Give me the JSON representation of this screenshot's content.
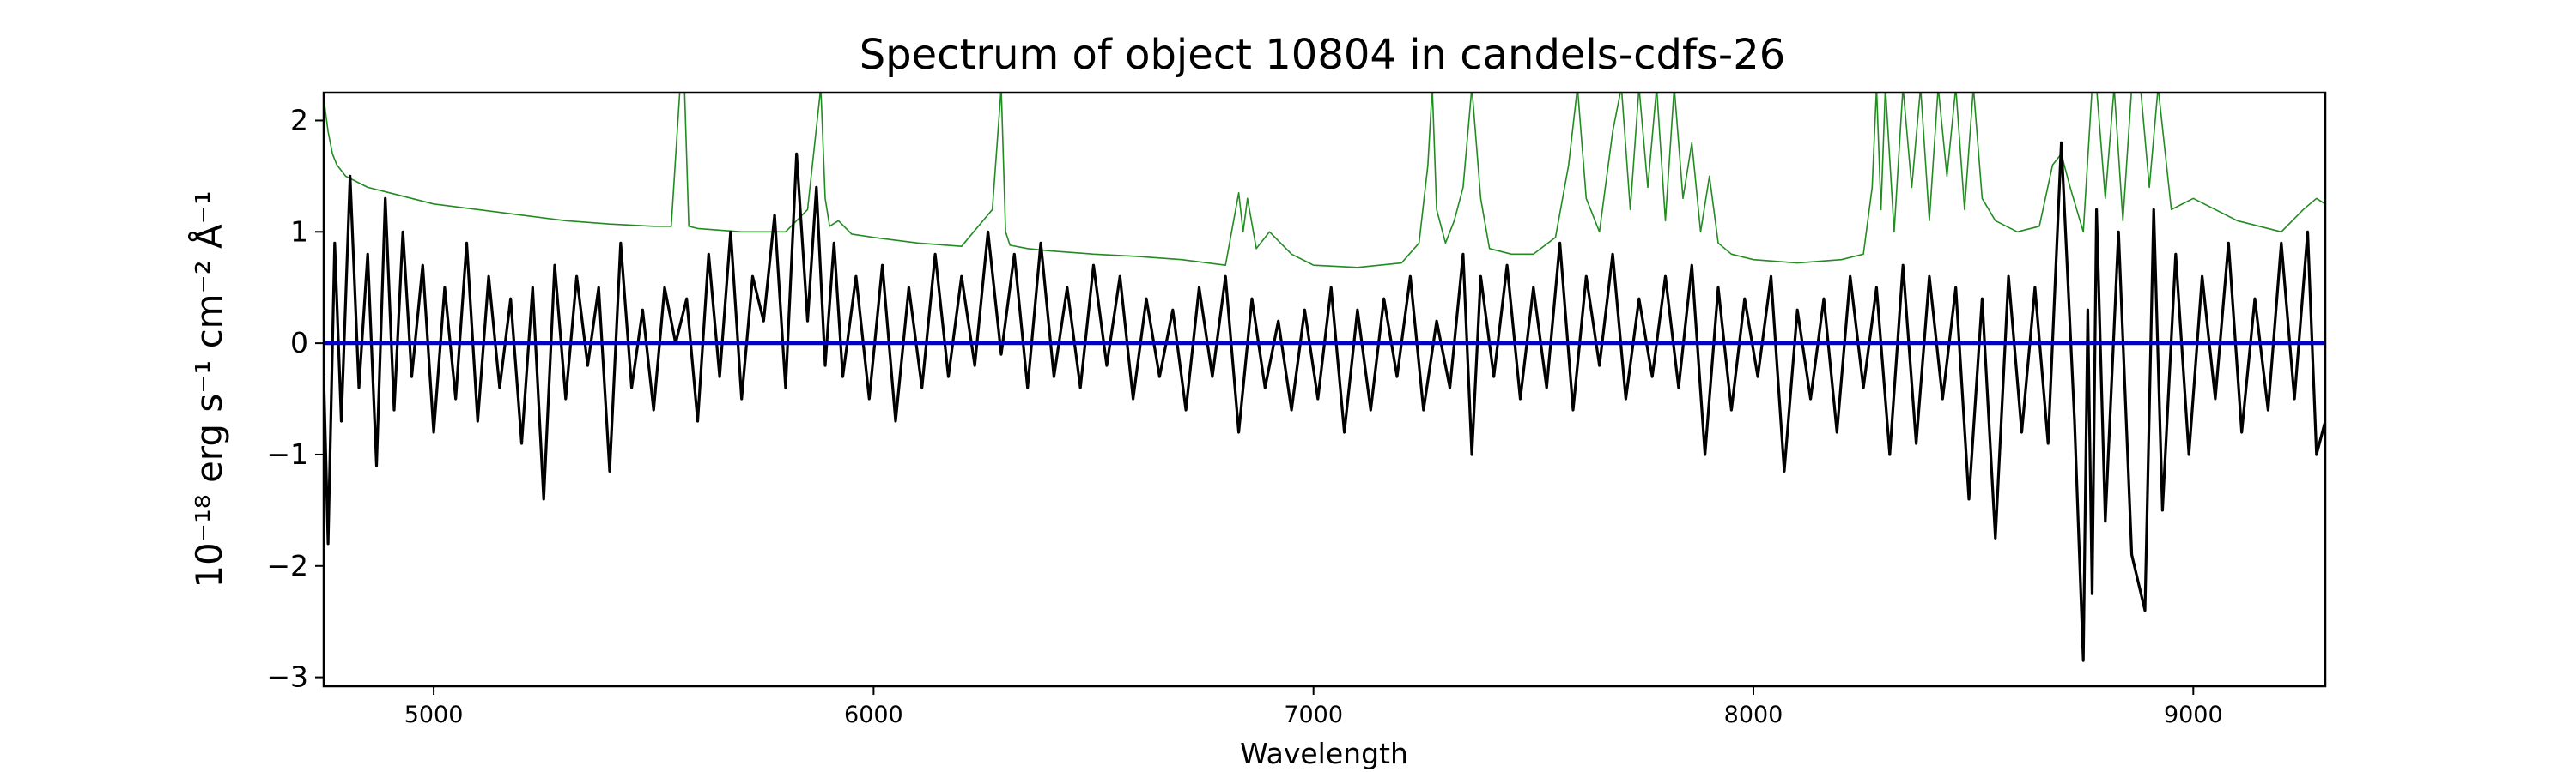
{
  "chart_data": {
    "type": "line",
    "title": "Spectrum of object 10804 in candels-cdfs-26",
    "xlabel": "Wavelength",
    "ylabel": "10⁻¹⁸ erg s⁻¹ cm⁻² Å⁻¹",
    "xlim": [
      4750,
      9300
    ],
    "ylim": [
      -3.08,
      2.25
    ],
    "x_ticks": [
      5000,
      6000,
      7000,
      8000,
      9000
    ],
    "x_tick_labels": [
      "5000",
      "6000",
      "7000",
      "8000",
      "9000"
    ],
    "y_ticks": [
      -3,
      -2,
      -1,
      0,
      1,
      2
    ],
    "y_tick_labels": [
      "−3",
      "−2",
      "−1",
      "0",
      "1",
      "2"
    ],
    "grid": false,
    "colors": {
      "flux": "#000000",
      "error": "#228b22",
      "zero": "#0000cc"
    },
    "series": [
      {
        "role": "flux",
        "x": [
          4750,
          4760,
          4775,
          4790,
          4810,
          4830,
          4850,
          4870,
          4890,
          4910,
          4930,
          4950,
          4975,
          5000,
          5025,
          5050,
          5075,
          5100,
          5125,
          5150,
          5175,
          5200,
          5225,
          5250,
          5275,
          5300,
          5325,
          5350,
          5375,
          5400,
          5425,
          5450,
          5475,
          5500,
          5525,
          5550,
          5575,
          5600,
          5625,
          5650,
          5675,
          5700,
          5725,
          5750,
          5775,
          5800,
          5825,
          5850,
          5870,
          5890,
          5910,
          5930,
          5960,
          5990,
          6020,
          6050,
          6080,
          6110,
          6140,
          6170,
          6200,
          6230,
          6260,
          6290,
          6320,
          6350,
          6380,
          6410,
          6440,
          6470,
          6500,
          6530,
          6560,
          6590,
          6620,
          6650,
          6680,
          6710,
          6740,
          6770,
          6800,
          6830,
          6860,
          6890,
          6920,
          6950,
          6980,
          7010,
          7040,
          7070,
          7100,
          7130,
          7160,
          7190,
          7220,
          7250,
          7280,
          7310,
          7340,
          7360,
          7380,
          7410,
          7440,
          7470,
          7500,
          7530,
          7560,
          7590,
          7620,
          7650,
          7680,
          7710,
          7740,
          7770,
          7800,
          7830,
          7860,
          7890,
          7920,
          7950,
          7980,
          8010,
          8040,
          8070,
          8100,
          8130,
          8160,
          8190,
          8220,
          8250,
          8280,
          8310,
          8340,
          8370,
          8400,
          8430,
          8460,
          8490,
          8520,
          8550,
          8580,
          8610,
          8640,
          8670,
          8700,
          8730,
          8750,
          8760,
          8770,
          8780,
          8800,
          8830,
          8860,
          8890,
          8910,
          8930,
          8960,
          8990,
          9020,
          9050,
          9080,
          9110,
          9140,
          9170,
          9200,
          9230,
          9260,
          9280,
          9300
        ],
        "y": [
          -0.3,
          -1.8,
          0.9,
          -0.7,
          1.5,
          -0.4,
          0.8,
          -1.1,
          1.3,
          -0.6,
          1.0,
          -0.3,
          0.7,
          -0.8,
          0.5,
          -0.5,
          0.9,
          -0.7,
          0.6,
          -0.4,
          0.4,
          -0.9,
          0.5,
          -1.4,
          0.7,
          -0.5,
          0.6,
          -0.2,
          0.5,
          -1.15,
          0.9,
          -0.4,
          0.3,
          -0.6,
          0.5,
          0.0,
          0.4,
          -0.7,
          0.8,
          -0.3,
          1.0,
          -0.5,
          0.6,
          0.2,
          1.15,
          -0.4,
          1.7,
          0.2,
          1.4,
          -0.2,
          0.9,
          -0.3,
          0.6,
          -0.5,
          0.7,
          -0.7,
          0.5,
          -0.4,
          0.8,
          -0.3,
          0.6,
          -0.2,
          1.0,
          -0.1,
          0.8,
          -0.4,
          0.9,
          -0.3,
          0.5,
          -0.4,
          0.7,
          -0.2,
          0.6,
          -0.5,
          0.4,
          -0.3,
          0.3,
          -0.6,
          0.5,
          -0.3,
          0.6,
          -0.8,
          0.4,
          -0.4,
          0.2,
          -0.6,
          0.3,
          -0.5,
          0.5,
          -0.8,
          0.3,
          -0.6,
          0.4,
          -0.3,
          0.6,
          -0.6,
          0.2,
          -0.4,
          0.8,
          -1.0,
          0.6,
          -0.3,
          0.7,
          -0.5,
          0.5,
          -0.4,
          0.9,
          -0.6,
          0.6,
          -0.2,
          0.8,
          -0.5,
          0.4,
          -0.3,
          0.6,
          -0.4,
          0.7,
          -1.0,
          0.5,
          -0.6,
          0.4,
          -0.3,
          0.6,
          -1.15,
          0.3,
          -0.5,
          0.4,
          -0.8,
          0.6,
          -0.4,
          0.5,
          -1.0,
          0.7,
          -0.9,
          0.6,
          -0.5,
          0.5,
          -1.4,
          0.4,
          -1.75,
          0.6,
          -0.8,
          0.5,
          -0.9,
          1.8,
          -0.7,
          -2.85,
          0.3,
          -2.25,
          1.2,
          -1.6,
          1.0,
          -1.9,
          -2.4,
          1.2,
          -1.5,
          0.8,
          -1.0,
          0.6,
          -0.5,
          0.9,
          -0.8,
          0.4,
          -0.6,
          0.9,
          -0.5,
          1.0,
          -1.0,
          -0.7
        ]
      },
      {
        "role": "error",
        "x": [
          4750,
          4760,
          4770,
          4780,
          4800,
          4850,
          4900,
          4950,
          5000,
          5100,
          5200,
          5300,
          5400,
          5500,
          5540,
          5560,
          5570,
          5580,
          5600,
          5700,
          5800,
          5850,
          5880,
          5890,
          5900,
          5920,
          5950,
          6000,
          6100,
          6200,
          6270,
          6290,
          6300,
          6310,
          6350,
          6400,
          6500,
          6600,
          6700,
          6800,
          6830,
          6840,
          6850,
          6870,
          6900,
          6950,
          7000,
          7100,
          7200,
          7240,
          7260,
          7270,
          7280,
          7300,
          7320,
          7340,
          7360,
          7380,
          7400,
          7450,
          7500,
          7550,
          7580,
          7600,
          7620,
          7650,
          7680,
          7700,
          7720,
          7740,
          7760,
          7780,
          7800,
          7820,
          7840,
          7860,
          7880,
          7900,
          7920,
          7950,
          8000,
          8100,
          8200,
          8250,
          8270,
          8280,
          8290,
          8300,
          8320,
          8340,
          8360,
          8380,
          8400,
          8420,
          8440,
          8460,
          8480,
          8500,
          8520,
          8550,
          8600,
          8650,
          8680,
          8700,
          8720,
          8750,
          8770,
          8780,
          8800,
          8820,
          8840,
          8860,
          8880,
          8900,
          8920,
          8950,
          9000,
          9100,
          9200,
          9250,
          9280,
          9300
        ],
        "y": [
          2.2,
          1.9,
          1.7,
          1.6,
          1.5,
          1.4,
          1.35,
          1.3,
          1.25,
          1.2,
          1.15,
          1.1,
          1.07,
          1.05,
          1.05,
          2.3,
          2.3,
          1.05,
          1.03,
          1.0,
          1.0,
          1.2,
          2.3,
          1.3,
          1.05,
          1.1,
          0.98,
          0.95,
          0.9,
          0.87,
          1.2,
          2.3,
          1.0,
          0.88,
          0.85,
          0.83,
          0.8,
          0.78,
          0.75,
          0.7,
          1.35,
          1.0,
          1.3,
          0.85,
          1.0,
          0.8,
          0.7,
          0.68,
          0.72,
          0.9,
          1.6,
          2.3,
          1.2,
          0.9,
          1.1,
          1.4,
          2.3,
          1.3,
          0.85,
          0.8,
          0.8,
          0.95,
          1.6,
          2.3,
          1.3,
          1.0,
          1.9,
          2.3,
          1.2,
          2.3,
          1.4,
          2.3,
          1.1,
          2.3,
          1.3,
          1.8,
          1.0,
          1.5,
          0.9,
          0.8,
          0.75,
          0.72,
          0.75,
          0.8,
          1.4,
          2.3,
          1.2,
          2.3,
          1.0,
          2.3,
          1.4,
          2.3,
          1.1,
          2.3,
          1.5,
          2.3,
          1.2,
          2.3,
          1.3,
          1.1,
          1.0,
          1.05,
          1.6,
          1.7,
          1.4,
          1.0,
          2.3,
          2.3,
          1.3,
          2.3,
          1.1,
          2.3,
          2.3,
          1.4,
          2.3,
          1.2,
          1.3,
          1.1,
          1.0,
          1.2,
          1.3,
          1.25
        ]
      },
      {
        "role": "zero",
        "x": [
          4750,
          9300
        ],
        "y": [
          0,
          0
        ]
      }
    ]
  }
}
